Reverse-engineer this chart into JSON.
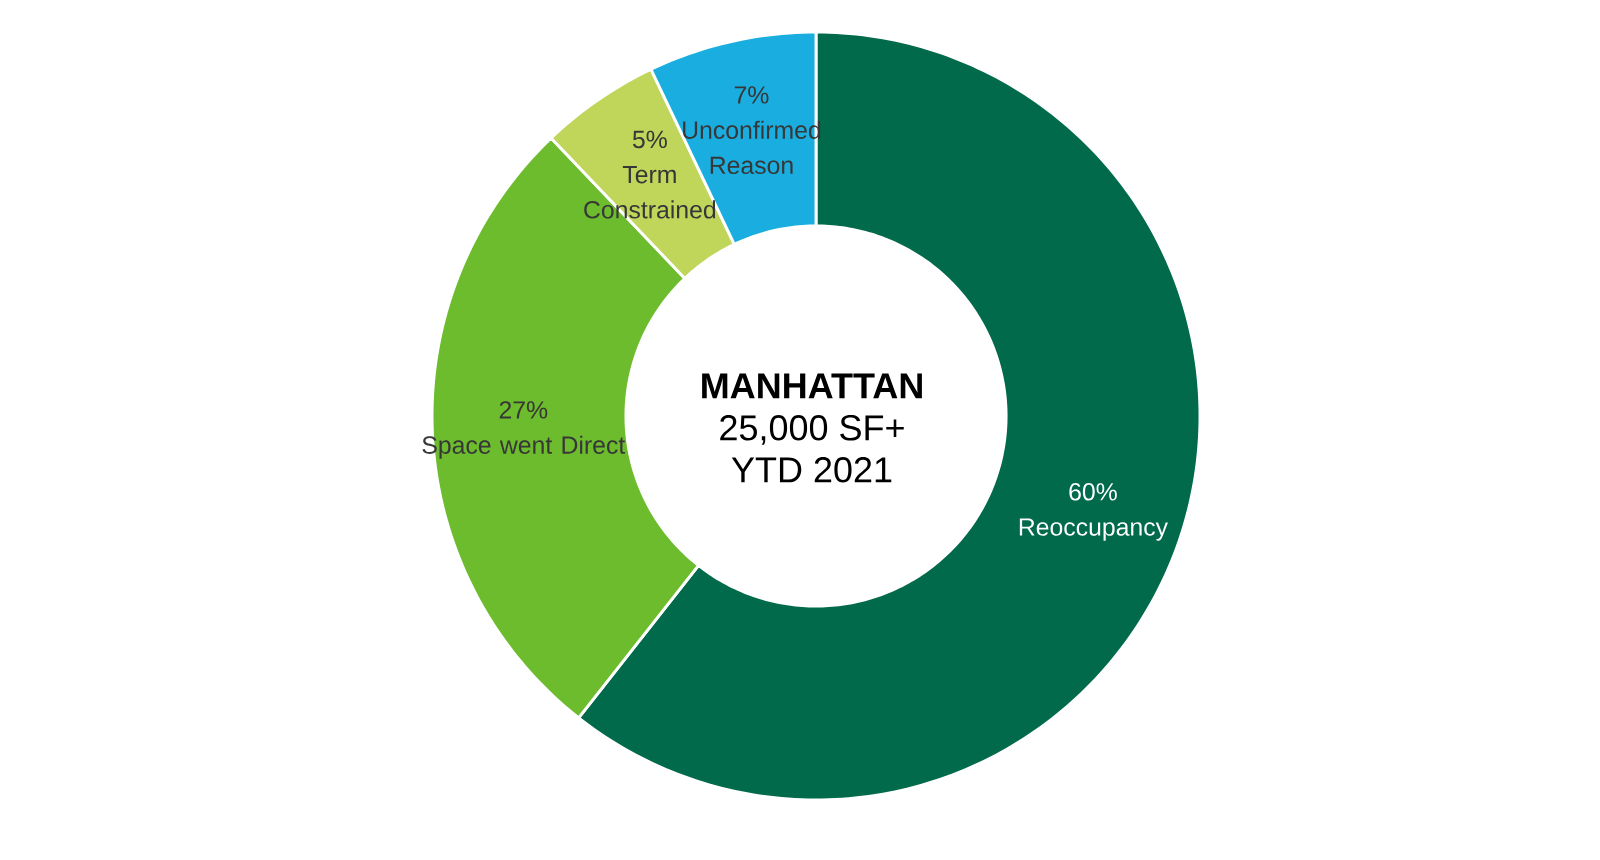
{
  "chart_data": {
    "type": "donut",
    "title": "MANHATTAN",
    "annotations": [
      "25,000 SF+",
      "YTD 2021"
    ],
    "categories": [
      "Reoccupancy",
      "Space went Direct",
      "Term Constrained",
      "Unconfirmed Reason"
    ],
    "values": [
      60,
      27,
      5,
      7
    ],
    "value_labels": [
      "60%",
      "27%",
      "5%",
      "7%"
    ],
    "colors": [
      "#006a4b",
      "#6cbc2d",
      "#c0d65b",
      "#1aaee0"
    ]
  }
}
